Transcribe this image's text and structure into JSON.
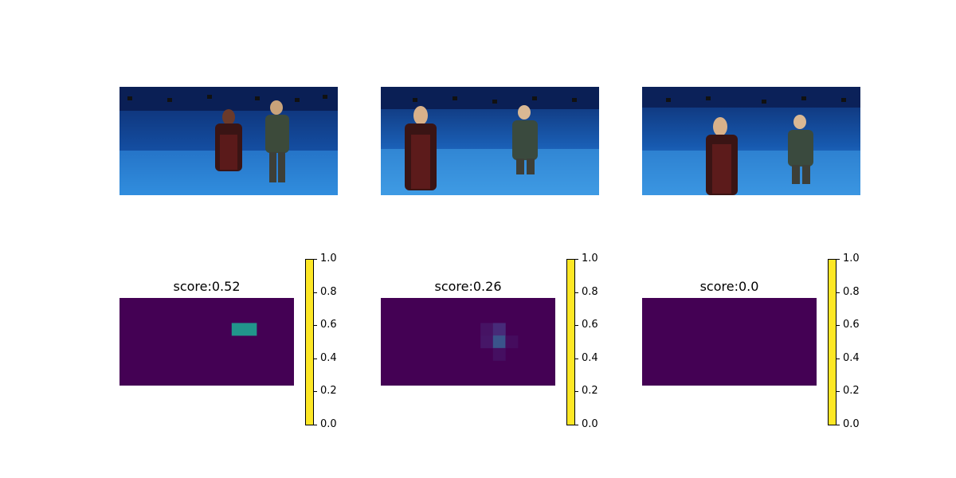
{
  "chart_data": [
    {
      "type": "heatmap",
      "title": "score:0.52",
      "colorbar": {
        "range": [
          0,
          1
        ],
        "ticks": [
          "0.0",
          "0.2",
          "0.4",
          "0.6",
          "0.8",
          "1.0"
        ]
      },
      "hot_cells": [
        {
          "col": 9,
          "row": 2,
          "value": 0.52
        },
        {
          "col": 10,
          "row": 2,
          "value": 0.52
        }
      ]
    },
    {
      "type": "heatmap",
      "title": "score:0.26",
      "colorbar": {
        "range": [
          0,
          1
        ],
        "ticks": [
          "0.0",
          "0.2",
          "0.4",
          "0.6",
          "0.8",
          "1.0"
        ]
      },
      "hot_cells": [
        {
          "col": 8,
          "row": 2,
          "value": 0.05
        },
        {
          "col": 9,
          "row": 2,
          "value": 0.12
        },
        {
          "col": 8,
          "row": 3,
          "value": 0.06
        },
        {
          "col": 9,
          "row": 3,
          "value": 0.26
        },
        {
          "col": 10,
          "row": 3,
          "value": 0.03
        },
        {
          "col": 9,
          "row": 4,
          "value": 0.04
        }
      ]
    },
    {
      "type": "heatmap",
      "title": "score:0.0",
      "colorbar": {
        "range": [
          0,
          1
        ],
        "ticks": [
          "0.0",
          "0.2",
          "0.4",
          "0.6",
          "0.8",
          "1.0"
        ]
      },
      "hot_cells": []
    }
  ],
  "colors": {
    "viridis_low": "#440154",
    "viridis_high": "#fde725",
    "stage_blue": "#1f6fc4"
  }
}
